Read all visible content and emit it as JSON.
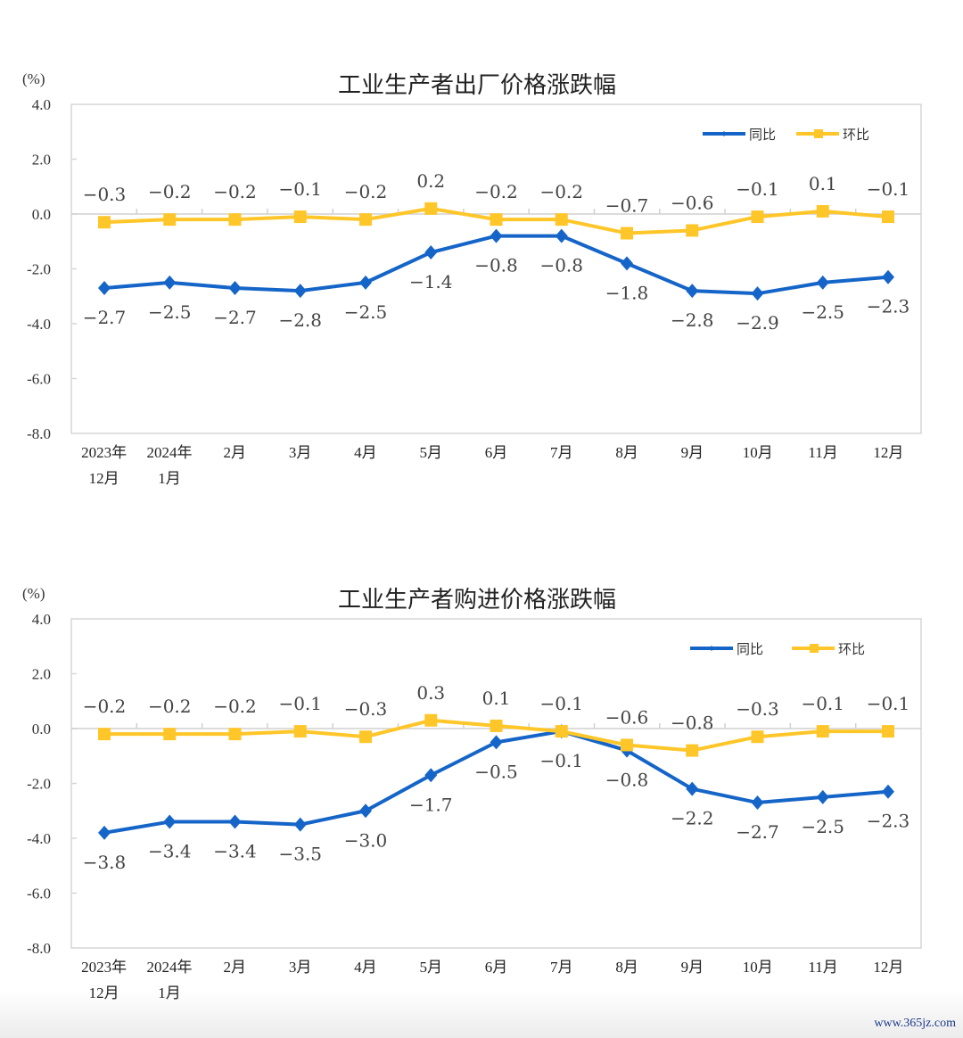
{
  "chart_data": [
    {
      "type": "line",
      "title": "工业生产者出厂价格涨跌幅",
      "ylabel": "(%)",
      "xlabel": "",
      "ylim": [
        -8.0,
        4.0
      ],
      "yticks": [
        "4.0",
        "2.0",
        "0.0",
        "-2.0",
        "-4.0",
        "-6.0",
        "-8.0"
      ],
      "ytick_values": [
        4,
        2,
        0,
        -2,
        -4,
        -6,
        -8
      ],
      "categories": [
        {
          "line1": "2023年",
          "line2": "12月"
        },
        {
          "line1": "2024年",
          "line2": "1月"
        },
        {
          "line1": "2月",
          "line2": ""
        },
        {
          "line1": "3月",
          "line2": ""
        },
        {
          "line1": "4月",
          "line2": ""
        },
        {
          "line1": "5月",
          "line2": ""
        },
        {
          "line1": "6月",
          "line2": ""
        },
        {
          "line1": "7月",
          "line2": ""
        },
        {
          "line1": "8月",
          "line2": ""
        },
        {
          "line1": "9月",
          "line2": ""
        },
        {
          "line1": "10月",
          "line2": ""
        },
        {
          "line1": "11月",
          "line2": ""
        },
        {
          "line1": "12月",
          "line2": ""
        }
      ],
      "legend_position": "top-right",
      "grid": false,
      "series": [
        {
          "name": "同比",
          "color": "#1565C8",
          "marker": "diamond",
          "label_position": "below",
          "values": [
            -2.7,
            -2.5,
            -2.7,
            -2.8,
            -2.5,
            -1.4,
            -0.8,
            -0.8,
            -1.8,
            -2.8,
            -2.9,
            -2.5,
            -2.3
          ],
          "labels": [
            "−2.7",
            "−2.5",
            "−2.7",
            "−2.8",
            "−2.5",
            "−1.4",
            "−0.8",
            "−0.8",
            "−1.8",
            "−2.8",
            "−2.9",
            "−2.5",
            "−2.3"
          ]
        },
        {
          "name": "环比",
          "color": "#FFC629",
          "marker": "square",
          "label_position": "above",
          "values": [
            -0.3,
            -0.2,
            -0.2,
            -0.1,
            -0.2,
            0.2,
            -0.2,
            -0.2,
            -0.7,
            -0.6,
            -0.1,
            0.1,
            -0.1
          ],
          "labels": [
            "−0.3",
            "−0.2",
            "−0.2",
            "−0.1",
            "−0.2",
            "0.2",
            "−0.2",
            "−0.2",
            "−0.7",
            "−0.6",
            "−0.1",
            "0.1",
            "−0.1"
          ]
        }
      ]
    },
    {
      "type": "line",
      "title": "工业生产者购进价格涨跌幅",
      "ylabel": "(%)",
      "xlabel": "",
      "ylim": [
        -8.0,
        4.0
      ],
      "yticks": [
        "4.0",
        "2.0",
        "0.0",
        "-2.0",
        "-4.0",
        "-6.0",
        "-8.0"
      ],
      "ytick_values": [
        4,
        2,
        0,
        -2,
        -4,
        -6,
        -8
      ],
      "categories": [
        {
          "line1": "2023年",
          "line2": "12月"
        },
        {
          "line1": "2024年",
          "line2": "1月"
        },
        {
          "line1": "2月",
          "line2": ""
        },
        {
          "line1": "3月",
          "line2": ""
        },
        {
          "line1": "4月",
          "line2": ""
        },
        {
          "line1": "5月",
          "line2": ""
        },
        {
          "line1": "6月",
          "line2": ""
        },
        {
          "line1": "7月",
          "line2": ""
        },
        {
          "line1": "8月",
          "line2": ""
        },
        {
          "line1": "9月",
          "line2": ""
        },
        {
          "line1": "10月",
          "line2": ""
        },
        {
          "line1": "11月",
          "line2": ""
        },
        {
          "line1": "12月",
          "line2": ""
        }
      ],
      "legend_position": "top-right",
      "grid": false,
      "series": [
        {
          "name": "同比",
          "color": "#1565C8",
          "marker": "diamond",
          "label_position": "below",
          "values": [
            -3.8,
            -3.4,
            -3.4,
            -3.5,
            -3.0,
            -1.7,
            -0.5,
            -0.1,
            -0.8,
            -2.2,
            -2.7,
            -2.5,
            -2.3
          ],
          "labels": [
            "−3.8",
            "−3.4",
            "−3.4",
            "−3.5",
            "−3.0",
            "−1.7",
            "−0.5",
            "−0.1",
            "−0.8",
            "−2.2",
            "−2.7",
            "−2.5",
            "−2.3"
          ]
        },
        {
          "name": "环比",
          "color": "#FFC629",
          "marker": "square",
          "label_position": "above",
          "values": [
            -0.2,
            -0.2,
            -0.2,
            -0.1,
            -0.3,
            0.3,
            0.1,
            -0.1,
            -0.6,
            -0.8,
            -0.3,
            -0.1,
            -0.1
          ],
          "labels": [
            "−0.2",
            "−0.2",
            "−0.2",
            "−0.1",
            "−0.3",
            "0.3",
            "0.1",
            "−0.1",
            "−0.6",
            "−0.8",
            "−0.3",
            "−0.1",
            "−0.1"
          ]
        }
      ]
    }
  ],
  "watermark": "www.365jz.com"
}
